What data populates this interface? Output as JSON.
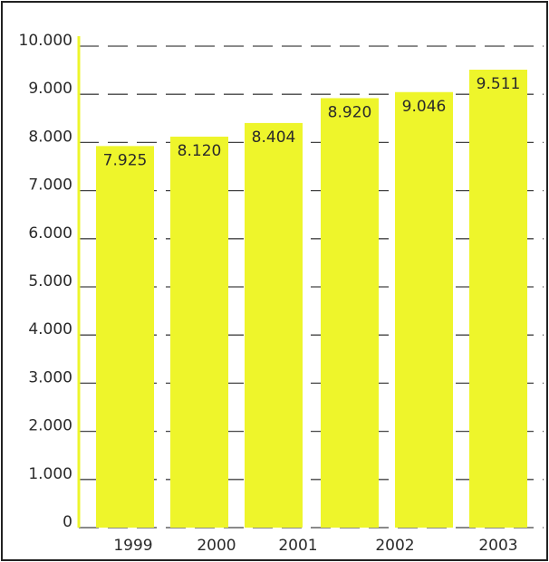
{
  "chart_data": {
    "type": "bar",
    "categories": [
      "1999",
      "2000",
      "2001",
      null,
      "2002",
      "2003"
    ],
    "values": [
      7925,
      8120,
      8404,
      8920,
      9046,
      9511
    ],
    "value_labels": [
      "7.925",
      "8.120",
      "8.404",
      "8.920",
      "9.046",
      "9.511"
    ],
    "color": "#eef52b",
    "ylim": [
      0,
      10000
    ],
    "yticks": [
      0,
      {
        "value": 1000,
        "label": "1.000"
      },
      {
        "value": 2000,
        "label": "2.000"
      },
      {
        "value": 3000,
        "label": "3.000"
      },
      {
        "value": 4000,
        "label": "4.000"
      },
      {
        "value": 5000,
        "label": "5.000"
      },
      {
        "value": 6000,
        "label": "6.000"
      },
      {
        "value": 7000,
        "label": "7.000"
      },
      {
        "value": 8000,
        "label": "8.000"
      },
      {
        "value": 9000,
        "label": "9.000"
      },
      {
        "value": 10000,
        "label": "10.000"
      }
    ],
    "grid": true
  }
}
